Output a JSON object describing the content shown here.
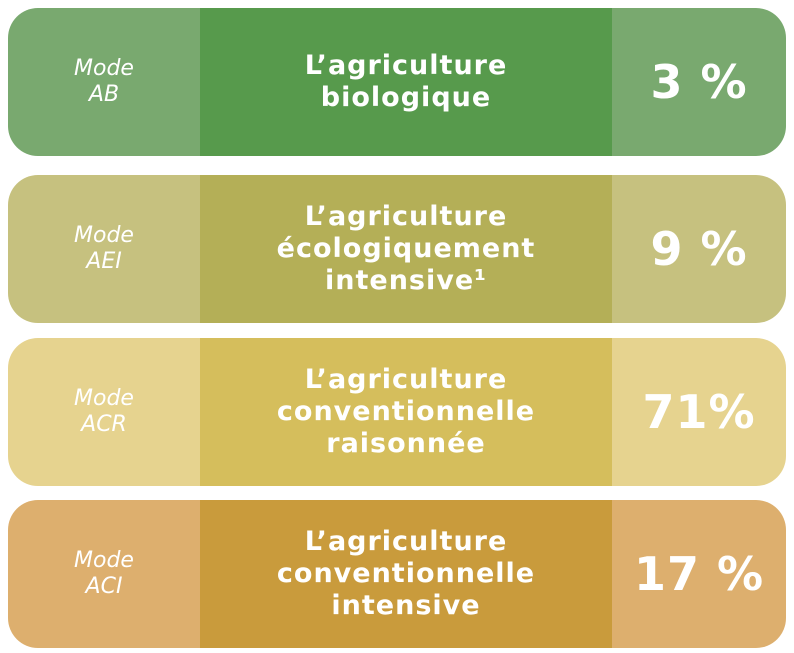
{
  "rows": [
    {
      "mode": [
        "Mode",
        "AB"
      ],
      "label": [
        "L’agriculture",
        "biologique"
      ],
      "value": "3 %"
    },
    {
      "mode": [
        "Mode",
        "AEI"
      ],
      "label": [
        "L’agriculture",
        "écologiquement",
        "intensive¹"
      ],
      "value": "9 %"
    },
    {
      "mode": [
        "Mode",
        "ACR"
      ],
      "label": [
        "L’agriculture",
        "conventionnelle",
        "raisonnée"
      ],
      "value": "71%"
    },
    {
      "mode": [
        "Mode",
        "ACI"
      ],
      "label": [
        "L’agriculture",
        "conventionnelle",
        "intensive"
      ],
      "value": "17 %"
    }
  ]
}
